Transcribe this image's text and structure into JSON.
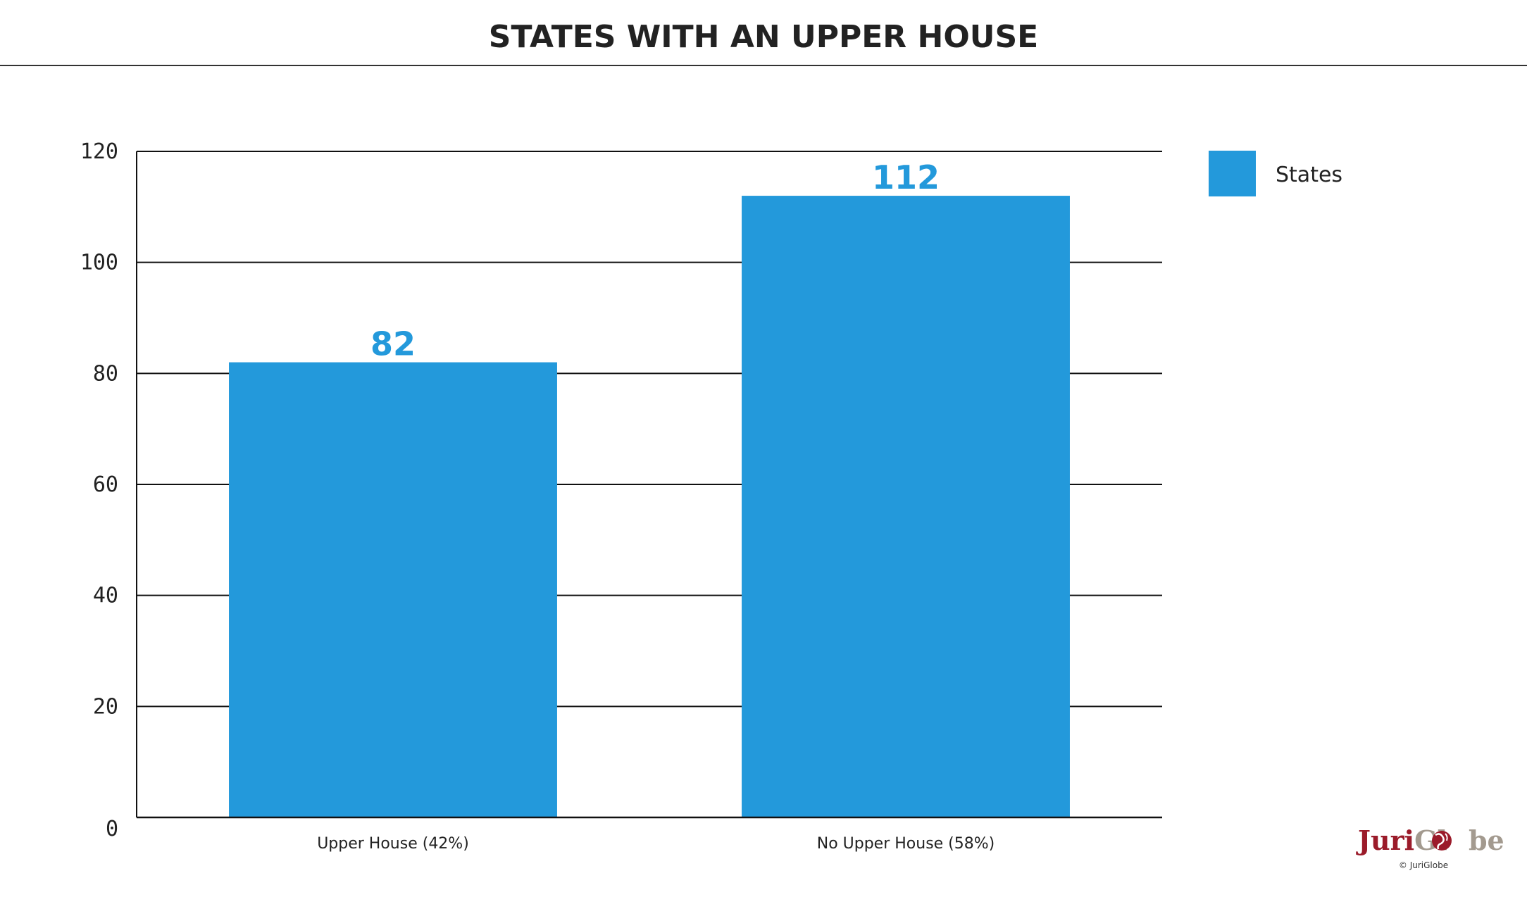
{
  "colors": {
    "bar": "#2399db",
    "grid": "#111111",
    "text": "#222222",
    "logo_red": "#9b1b2a",
    "logo_gray": "#a39a8f"
  },
  "logo": {
    "juri": "Juri",
    "gl": "Gl",
    "be": "be",
    "copyright": "© JuriGlobe"
  },
  "chart_data": {
    "type": "bar",
    "title": "STATES WITH AN UPPER HOUSE",
    "xlabel": "",
    "ylabel": "",
    "categories": [
      "Upper House (42%)",
      "No Upper House (58%)"
    ],
    "series": [
      {
        "name": "States",
        "values": [
          82,
          112
        ],
        "color": "#2399db"
      }
    ],
    "ylim": [
      0,
      120
    ],
    "yticks": [
      0,
      20,
      40,
      60,
      80,
      100,
      120
    ],
    "grid": true,
    "legend": "top-right",
    "data_labels": true
  }
}
